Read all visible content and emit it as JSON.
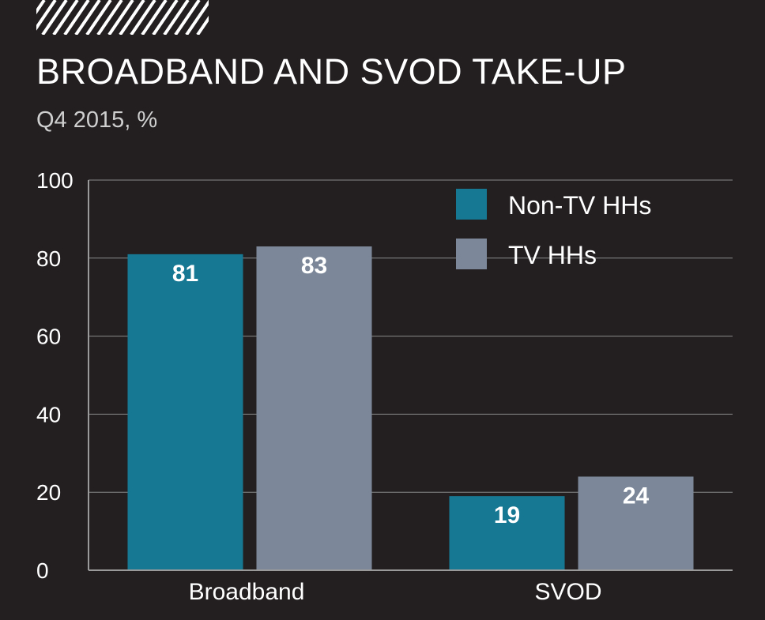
{
  "title": "BROADBAND AND SVOD TAKE-UP",
  "subtitle": "Q4 2015, %",
  "colors": {
    "background": "#231f20",
    "non_tv": "#177893",
    "tv": "#7c8899",
    "grid": "#8a8a8a"
  },
  "chart_data": {
    "type": "bar",
    "title": "BROADBAND AND SVOD TAKE-UP",
    "subtitle": "Q4 2015, %",
    "categories": [
      "Broadband",
      "SVOD"
    ],
    "series": [
      {
        "name": "Non-TV HHs",
        "color": "#177893",
        "values": [
          81,
          19
        ]
      },
      {
        "name": "TV HHs",
        "color": "#7c8899",
        "values": [
          83,
          24
        ]
      }
    ],
    "ylim": [
      0,
      100
    ],
    "yticks": [
      "0",
      "20",
      "40",
      "60",
      "80",
      "100"
    ],
    "grid": true,
    "legend": "top-right",
    "data_labels": [
      "81",
      "83",
      "19",
      "24"
    ]
  }
}
